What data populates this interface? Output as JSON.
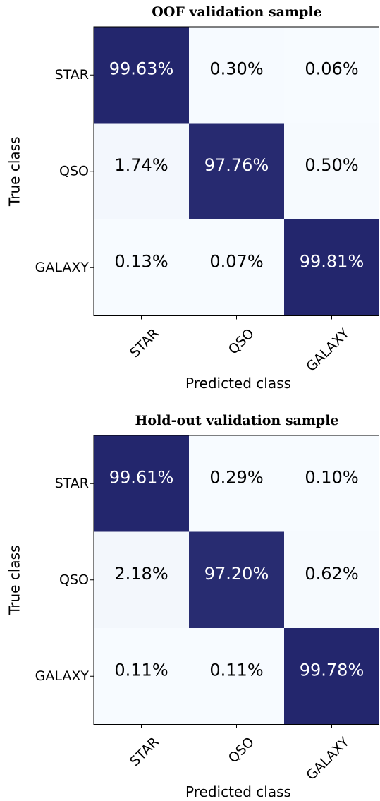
{
  "chart_data": [
    {
      "type": "heatmap",
      "title": "OOF validation sample",
      "x_label": "Predicted class",
      "y_label": "True class",
      "x_categories": [
        "STAR",
        "QSO",
        "GALAXY"
      ],
      "y_categories": [
        "STAR",
        "QSO",
        "GALAXY"
      ],
      "values": [
        [
          99.63,
          0.3,
          0.06
        ],
        [
          1.74,
          97.76,
          0.5
        ],
        [
          0.13,
          0.07,
          99.81
        ]
      ],
      "value_labels": [
        [
          "99.63%",
          "0.30%",
          "0.06%"
        ],
        [
          "1.74%",
          "97.76%",
          "0.50%"
        ],
        [
          "0.13%",
          "0.07%",
          "99.81%"
        ]
      ],
      "colormap": [
        "#f7fbff",
        "#23266d"
      ]
    },
    {
      "type": "heatmap",
      "title": "Hold-out validation sample",
      "x_label": "Predicted class",
      "y_label": "True class",
      "x_categories": [
        "STAR",
        "QSO",
        "GALAXY"
      ],
      "y_categories": [
        "STAR",
        "QSO",
        "GALAXY"
      ],
      "values": [
        [
          99.61,
          0.29,
          0.1
        ],
        [
          2.18,
          97.2,
          0.62
        ],
        [
          0.11,
          0.11,
          99.78
        ]
      ],
      "value_labels": [
        [
          "99.61%",
          "0.29%",
          "0.10%"
        ],
        [
          "2.18%",
          "97.20%",
          "0.62%"
        ],
        [
          "0.11%",
          "0.11%",
          "99.78%"
        ]
      ],
      "colormap": [
        "#f7fbff",
        "#23266d"
      ]
    }
  ]
}
